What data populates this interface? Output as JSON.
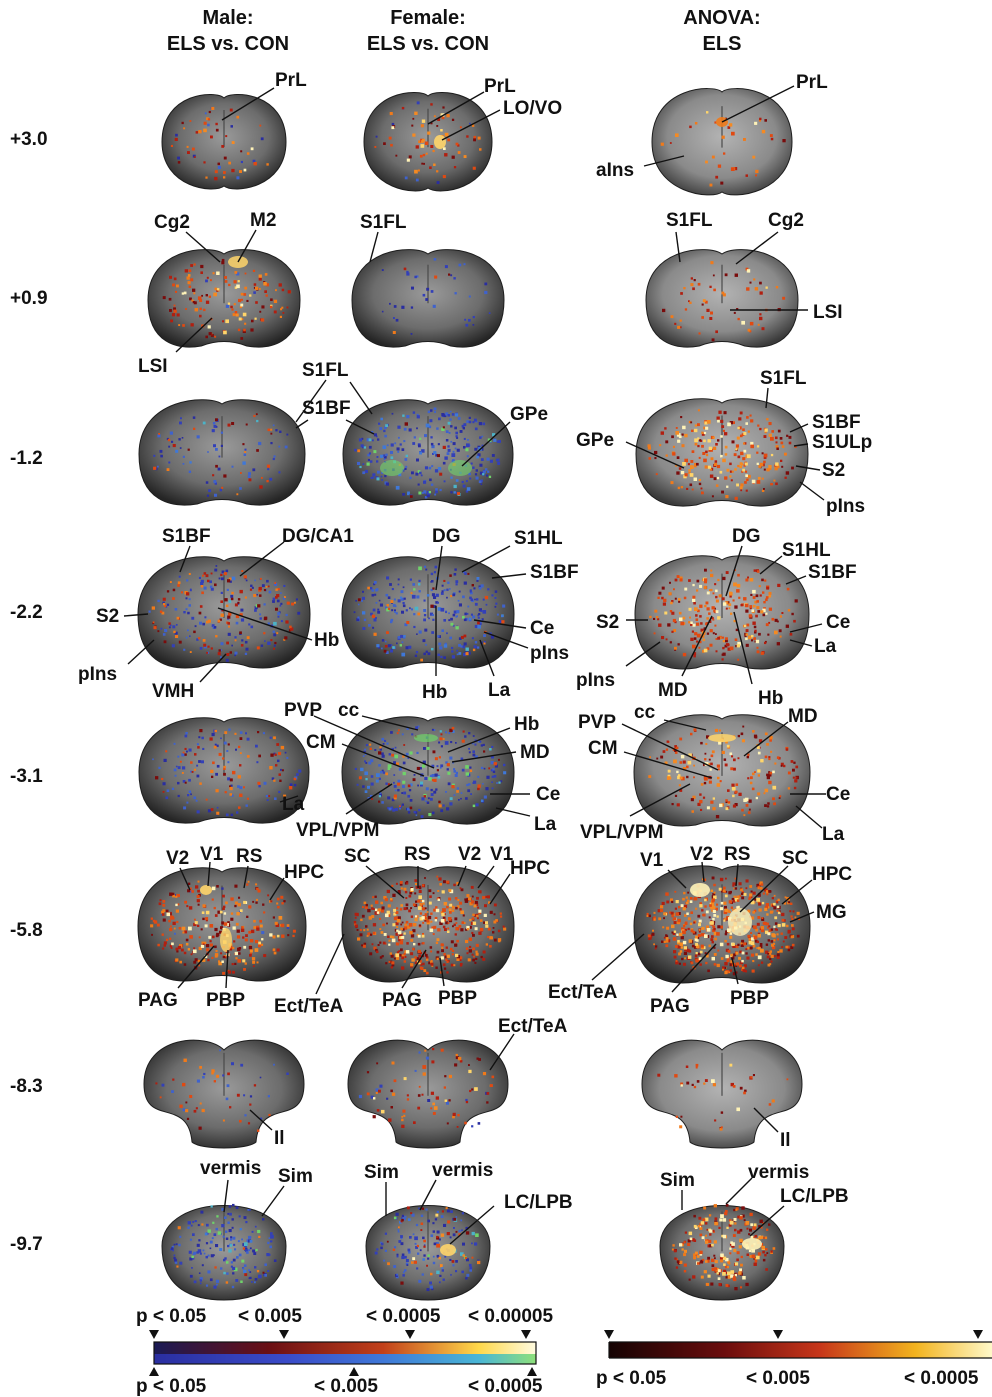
{
  "headers": [
    {
      "line1": "Male:",
      "line2": "ELS vs. CON"
    },
    {
      "line1": "Female:",
      "line2": "ELS vs. CON"
    },
    {
      "line1": "ANOVA:",
      "line2": "ELS"
    }
  ],
  "levels": [
    "+3.0",
    "+0.9",
    "-1.2",
    "-2.2",
    "-3.1",
    "-5.8",
    "-8.3",
    "-9.7"
  ],
  "labels": {
    "r0_male_PrL": "PrL",
    "r0_fem_PrL": "PrL",
    "r0_fem_LOVO": "LO/VO",
    "r0_an_PrL": "PrL",
    "r0_an_aIns": "aIns",
    "r1_male_Cg2": "Cg2",
    "r1_male_M2": "M2",
    "r1_male_LSI": "LSI",
    "r1_fem_S1FL": "S1FL",
    "r1_an_S1FL": "S1FL",
    "r1_an_Cg2": "Cg2",
    "r1_an_LSI": "LSI",
    "r2_S1FL": "S1FL",
    "r2_S1BF": "S1BF",
    "r2_fem_GPe": "GPe",
    "r2_an_S1FL": "S1FL",
    "r2_an_S1BF": "S1BF",
    "r2_an_S1ULp": "S1ULp",
    "r2_an_GPe": "GPe",
    "r2_an_S2": "S2",
    "r2_an_pIns": "pIns",
    "r3_male_S1BF": "S1BF",
    "r3_male_DGCA1": "DG/CA1",
    "r3_male_S2": "S2",
    "r3_male_Hb": "Hb",
    "r3_male_pIns": "pIns",
    "r3_male_VMH": "VMH",
    "r3_fem_DG": "DG",
    "r3_fem_S1HL": "S1HL",
    "r3_fem_S1BF": "S1BF",
    "r3_fem_Ce": "Ce",
    "r3_fem_pIns": "pIns",
    "r3_fem_Hb": "Hb",
    "r3_fem_La": "La",
    "r3_an_DG": "DG",
    "r3_an_S1HL": "S1HL",
    "r3_an_S1BF": "S1BF",
    "r3_an_S2": "S2",
    "r3_an_Ce": "Ce",
    "r3_an_La": "La",
    "r3_an_pIns": "pIns",
    "r3_an_MD": "MD",
    "r3_an_Hb": "Hb",
    "r4_male_La": "La",
    "r4_fem_PVP": "PVP",
    "r4_fem_cc": "cc",
    "r4_fem_Hb": "Hb",
    "r4_fem_CM": "CM",
    "r4_fem_MD": "MD",
    "r4_fem_Ce": "Ce",
    "r4_fem_VPLVPM": "VPL/VPM",
    "r4_fem_La": "La",
    "r4_an_PVP": "PVP",
    "r4_an_cc": "cc",
    "r4_an_MD": "MD",
    "r4_an_CM": "CM",
    "r4_an_Ce": "Ce",
    "r4_an_VPLVPM": "VPL/VPM",
    "r4_an_La": "La",
    "r5_male_V2": "V2",
    "r5_male_V1": "V1",
    "r5_male_RS": "RS",
    "r5_male_HPC": "HPC",
    "r5_male_PAG": "PAG",
    "r5_male_PBP": "PBP",
    "r5_fem_SC": "SC",
    "r5_fem_RS": "RS",
    "r5_fem_V2": "V2",
    "r5_fem_V1": "V1",
    "r5_fem_HPC": "HPC",
    "r5_fem_EctTeA": "Ect/TeA",
    "r5_fem_PAG": "PAG",
    "r5_fem_PBP": "PBP",
    "r5_an_V1": "V1",
    "r5_an_V2": "V2",
    "r5_an_RS": "RS",
    "r5_an_SC": "SC",
    "r5_an_HPC": "HPC",
    "r5_an_MG": "MG",
    "r5_an_EctTeA": "Ect/TeA",
    "r5_an_PAG": "PAG",
    "r5_an_PBP": "PBP",
    "r6_male_Il": "Il",
    "r6_fem_EctTeA": "Ect/TeA",
    "r6_an_Il": "Il",
    "r7_male_vermis": "vermis",
    "r7_male_Sim": "Sim",
    "r7_fem_Sim": "Sim",
    "r7_fem_vermis": "vermis",
    "r7_fem_LCLPB": "LC/LPB",
    "r7_an_Sim": "Sim",
    "r7_an_vermis": "vermis",
    "r7_an_LCLPB": "LC/LPB"
  },
  "colorbar_left": {
    "top_labels": [
      "p < 0.05",
      "< 0.005",
      "< 0.0005",
      "< 0.00005"
    ],
    "bottom_labels": [
      "p < 0.05",
      "< 0.005",
      "< 0.0005"
    ],
    "top_colors": [
      "#1a1a55",
      "#6a0f14",
      "#c2401a",
      "#ffd84a",
      "#fffbe0"
    ],
    "bottom_colors": [
      "#2a2ea0",
      "#3a4bc8",
      "#3f78d8",
      "#49b6d6",
      "#8ee07a"
    ]
  },
  "colorbar_right": {
    "labels": [
      "p < 0.05",
      "< 0.005",
      "< 0.0005"
    ],
    "colors": [
      "#150303",
      "#6b0d0d",
      "#c7361a",
      "#f2b31e",
      "#fff9c9"
    ]
  },
  "colors": {
    "brain_edge": "#2b2b2b",
    "brain_mid": "#8a8a8a",
    "anova_brain": "#9a9a9a",
    "hot": "#e04a12",
    "hot_bright": "#ffd56a",
    "cold": "#3340b8",
    "cold_green": "#6fd36a"
  }
}
